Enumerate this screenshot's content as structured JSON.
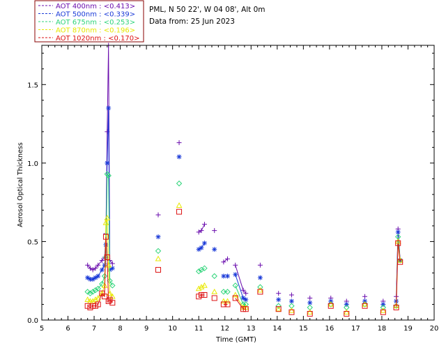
{
  "info": {
    "location": "PML, N 50 22', W 04 08', Alt 0m",
    "date_line": "Data from: 25 Jun 2023"
  },
  "colors": {
    "aot400": "#6a0dad",
    "aot500": "#1a3ad8",
    "aot675": "#2ed47a",
    "aot870": "#e8e800",
    "aot1020": "#dd1111",
    "axis": "#000000",
    "legend_border": "#880000"
  },
  "chart_data": {
    "type": "line",
    "title": "",
    "xlabel": "Time (GMT)",
    "ylabel": "Aerosol Optical Thickness",
    "xlim": [
      5,
      20
    ],
    "ylim": [
      0,
      1.75
    ],
    "xticks": [
      "5",
      "6",
      "7",
      "8",
      "9",
      "10",
      "11",
      "12",
      "13",
      "14",
      "15",
      "16",
      "17",
      "18",
      "19",
      "20"
    ],
    "yticks": [
      "0.0",
      "0.5",
      "1.0",
      "1.5"
    ],
    "legend": "top-left",
    "series": [
      {
        "name": "AOT  400nm : <0.413>",
        "marker": "plus",
        "color_key": "aot400",
        "x": [
          6.75,
          6.85,
          6.95,
          7.05,
          7.15,
          7.3,
          7.4,
          7.45,
          7.5,
          7.55,
          7.6,
          7.7,
          9.45,
          10.25,
          11.0,
          11.1,
          11.22,
          11.6,
          11.95,
          12.1,
          12.4,
          12.7,
          12.8,
          13.35,
          14.05,
          14.55,
          15.25,
          16.05,
          16.65,
          17.35,
          18.05,
          18.55,
          18.62,
          18.7
        ],
        "y": [
          0.35,
          0.33,
          0.32,
          0.33,
          0.35,
          0.38,
          0.4,
          0.55,
          1.2,
          1.75,
          0.38,
          0.36,
          0.67,
          1.13,
          0.56,
          0.57,
          0.61,
          0.57,
          0.37,
          0.39,
          0.35,
          0.19,
          0.17,
          0.35,
          0.17,
          0.16,
          0.14,
          0.14,
          0.12,
          0.15,
          0.12,
          0.15,
          0.58,
          0.38
        ]
      },
      {
        "name": "AOT  500nm : <0.339>",
        "marker": "star",
        "color_key": "aot500",
        "x": [
          6.75,
          6.85,
          6.95,
          7.05,
          7.15,
          7.3,
          7.4,
          7.45,
          7.5,
          7.55,
          7.6,
          7.7,
          9.45,
          10.25,
          11.0,
          11.1,
          11.22,
          11.6,
          11.95,
          12.1,
          12.4,
          12.7,
          12.8,
          13.35,
          14.05,
          14.55,
          15.25,
          16.05,
          16.65,
          17.35,
          18.05,
          18.55,
          18.62,
          18.7
        ],
        "y": [
          0.27,
          0.26,
          0.26,
          0.27,
          0.28,
          0.32,
          0.35,
          0.48,
          1.0,
          1.35,
          0.32,
          0.33,
          0.53,
          1.04,
          0.45,
          0.46,
          0.49,
          0.45,
          0.28,
          0.28,
          0.29,
          0.14,
          0.13,
          0.27,
          0.13,
          0.12,
          0.11,
          0.12,
          0.1,
          0.12,
          0.1,
          0.12,
          0.56,
          0.38
        ]
      },
      {
        "name": "AOT  675nm : <0.253>",
        "marker": "diamond",
        "color_key": "aot675",
        "x": [
          6.75,
          6.85,
          6.95,
          7.05,
          7.15,
          7.3,
          7.4,
          7.45,
          7.5,
          7.55,
          7.6,
          7.7,
          9.45,
          10.25,
          11.0,
          11.1,
          11.22,
          11.6,
          11.95,
          12.1,
          12.4,
          12.7,
          12.8,
          13.35,
          14.05,
          14.55,
          15.25,
          16.05,
          16.65,
          17.35,
          18.05,
          18.55,
          18.62,
          18.7
        ],
        "y": [
          0.18,
          0.17,
          0.18,
          0.19,
          0.2,
          0.23,
          0.28,
          0.4,
          0.93,
          0.92,
          0.25,
          0.22,
          0.44,
          0.87,
          0.31,
          0.32,
          0.33,
          0.28,
          0.18,
          0.18,
          0.22,
          0.1,
          0.1,
          0.21,
          0.09,
          0.09,
          0.08,
          0.1,
          0.08,
          0.1,
          0.08,
          0.09,
          0.53,
          0.38
        ]
      },
      {
        "name": "AOT  870nm : <0.196>",
        "marker": "triangle",
        "color_key": "aot870",
        "x": [
          6.75,
          6.85,
          6.95,
          7.05,
          7.15,
          7.3,
          7.4,
          7.45,
          7.5,
          7.55,
          7.6,
          7.7,
          9.45,
          10.25,
          11.0,
          11.1,
          11.22,
          11.6,
          11.95,
          12.1,
          12.4,
          12.7,
          12.8,
          13.35,
          14.05,
          14.55,
          15.25,
          16.05,
          16.65,
          17.35,
          18.05,
          18.55,
          18.62,
          18.7
        ],
        "y": [
          0.13,
          0.12,
          0.12,
          0.13,
          0.14,
          0.17,
          0.22,
          0.62,
          0.65,
          0.35,
          0.17,
          0.15,
          0.39,
          0.73,
          0.2,
          0.21,
          0.22,
          0.18,
          0.12,
          0.12,
          0.16,
          0.08,
          0.08,
          0.19,
          0.07,
          0.06,
          0.05,
          0.1,
          0.05,
          0.1,
          0.06,
          0.09,
          0.5,
          0.38
        ]
      },
      {
        "name": "AOT 1020nm : <0.170>",
        "marker": "square",
        "color_key": "aot1020",
        "x": [
          6.75,
          6.85,
          6.95,
          7.05,
          7.15,
          7.3,
          7.4,
          7.45,
          7.5,
          7.55,
          7.6,
          7.7,
          9.45,
          10.25,
          11.0,
          11.1,
          11.22,
          11.6,
          11.95,
          12.1,
          12.4,
          12.7,
          12.8,
          13.35,
          14.05,
          14.55,
          15.25,
          16.05,
          16.65,
          17.35,
          18.05,
          18.55,
          18.62,
          18.7
        ],
        "y": [
          0.09,
          0.08,
          0.09,
          0.09,
          0.1,
          0.17,
          0.15,
          0.53,
          0.4,
          0.12,
          0.13,
          0.11,
          0.32,
          0.69,
          0.15,
          0.16,
          0.16,
          0.14,
          0.1,
          0.1,
          0.14,
          0.07,
          0.07,
          0.18,
          0.07,
          0.05,
          0.04,
          0.09,
          0.04,
          0.09,
          0.05,
          0.08,
          0.49,
          0.37
        ]
      }
    ]
  }
}
